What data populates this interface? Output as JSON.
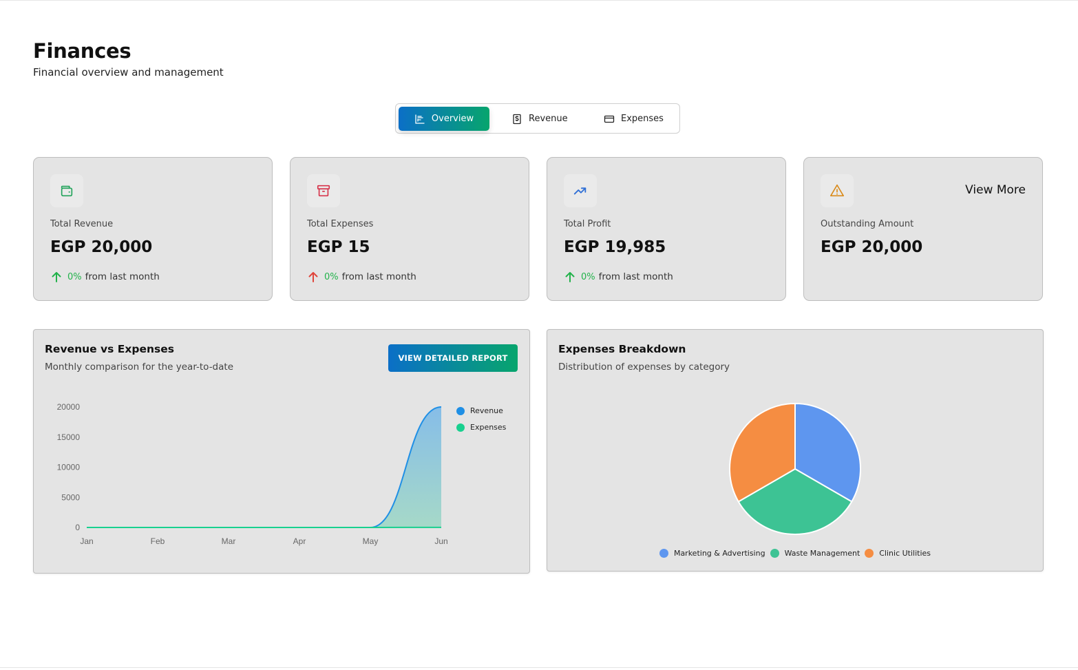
{
  "header": {
    "title": "Finances",
    "subtitle": "Financial overview and management"
  },
  "tabs": [
    {
      "label": "Overview",
      "icon": "bar-chart-icon",
      "active": true
    },
    {
      "label": "Revenue",
      "icon": "dollar-receipt-icon",
      "active": false
    },
    {
      "label": "Expenses",
      "icon": "credit-card-icon",
      "active": false
    }
  ],
  "cards": [
    {
      "label": "Total Revenue",
      "value": "EGP 20,000",
      "trend_pct": "0%",
      "trend_text": "from last month",
      "trend_dir": "up",
      "icon": "wallet-icon",
      "icon_color": "#21a35a"
    },
    {
      "label": "Total Expenses",
      "value": "EGP 15",
      "trend_pct": "0%",
      "trend_text": "from last month",
      "trend_dir": "up",
      "icon": "archive-icon",
      "icon_color": "#d6334a"
    },
    {
      "label": "Total Profit",
      "value": "EGP 19,985",
      "trend_pct": "0%",
      "trend_text": "from last month",
      "trend_dir": "up",
      "icon": "trending-up-icon",
      "icon_color": "#2f6fd6"
    },
    {
      "label": "Outstanding Amount",
      "value": "EGP 20,000",
      "icon": "warning-icon",
      "icon_color": "#d98a1a",
      "action": "View More"
    }
  ],
  "trend_colors": {
    "up_good": "#21b24a",
    "up_bad": "#e0443a"
  },
  "revenue_panel": {
    "title": "Revenue vs Expenses",
    "subtitle": "Monthly comparison for the year-to-date",
    "button": "VIEW DETAILED REPORT"
  },
  "expenses_panel": {
    "title": "Expenses Breakdown",
    "subtitle": "Distribution of expenses by category"
  },
  "chart_data": [
    {
      "type": "area",
      "categories": [
        "Jan",
        "Feb",
        "Mar",
        "Apr",
        "May",
        "Jun"
      ],
      "series": [
        {
          "name": "Revenue",
          "values": [
            0,
            0,
            0,
            0,
            0,
            20000
          ],
          "color": "#1f8fe5"
        },
        {
          "name": "Expenses",
          "values": [
            0,
            0,
            0,
            0,
            0,
            15
          ],
          "color": "#18d08f"
        }
      ],
      "yticks": [
        0,
        5000,
        10000,
        15000,
        20000
      ],
      "ylim": [
        0,
        20000
      ],
      "legend": "top-right",
      "grid": false
    },
    {
      "type": "pie",
      "slices": [
        {
          "label": "Marketing & Advertising",
          "value": 5,
          "color": "#5e96ef"
        },
        {
          "label": "Waste Management",
          "value": 5,
          "color": "#3dc394"
        },
        {
          "label": "Clinic Utilities",
          "value": 5,
          "color": "#f58d42"
        }
      ],
      "legend": "bottom"
    }
  ]
}
